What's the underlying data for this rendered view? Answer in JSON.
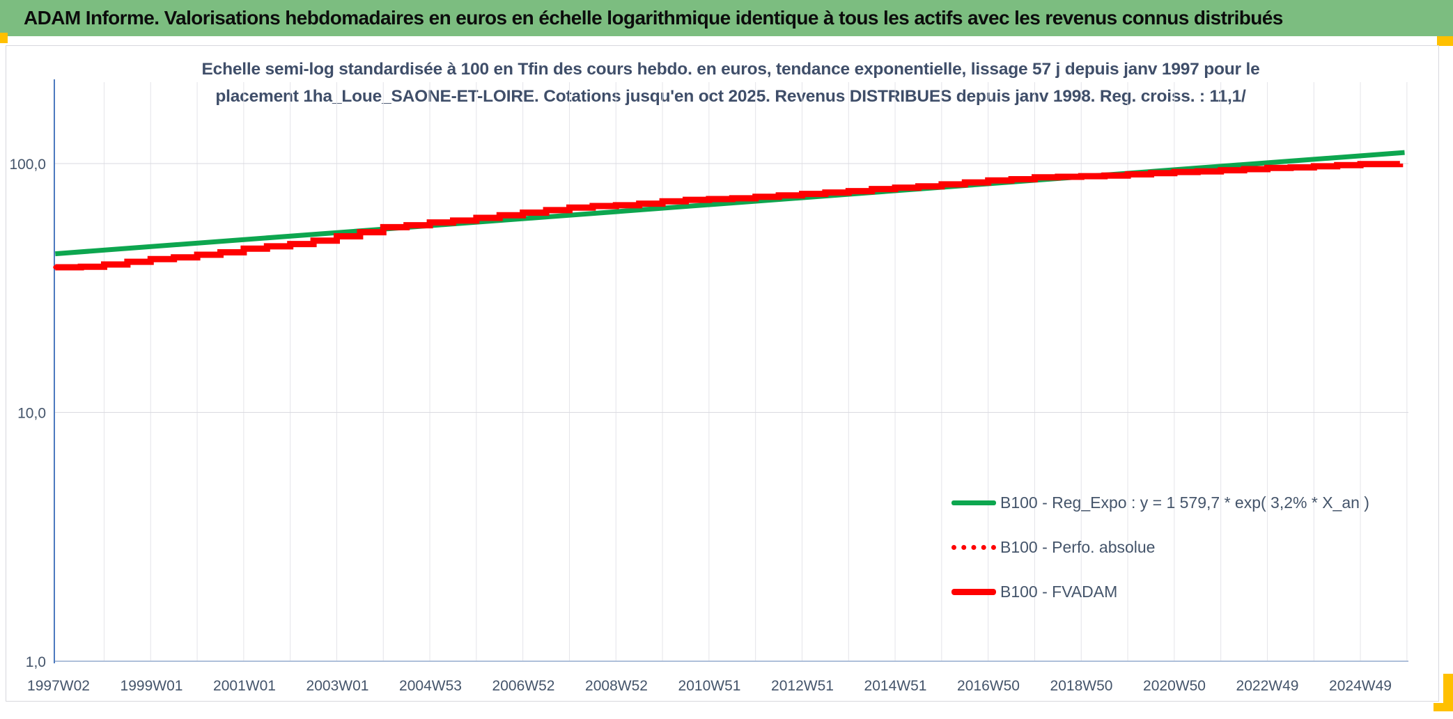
{
  "header": {
    "title": "ADAM Informe. Valorisations hebdomadaires en euros en échelle logarithmique identique à tous les actifs avec les revenus connus distribués",
    "bg_color": "#7CBD80",
    "accent_color": "#FFC000"
  },
  "chart": {
    "title_line1": "Echelle semi-log standardisée à 100 en Tfin des cours hebdo. en euros, tendance exponentielle, lissage 57 j depuis janv 1997 pour le",
    "title_line2": "placement 1ha_Loue_SAONE-ET-LOIRE. Cotations jusqu'en oct 2025. Revenus DISTRIBUES depuis janv 1998. Reg. croiss. : 11,1/",
    "title_color": "#3F4E69"
  },
  "chart_data": {
    "type": "line",
    "title": "Echelle semi-log standardisée à 100 en Tfin des cours hebdo. en euros",
    "xlabel": "",
    "ylabel": "",
    "y_scale": "log",
    "ylim": [
      1,
      209
    ],
    "xlim_years": [
      1996.95,
      2026.1
    ],
    "grid": {
      "vertical": "yearly",
      "horizontal_values": [
        10,
        100
      ]
    },
    "legend_position": "right-center",
    "x_axis": {
      "tick_labels": [
        "1997W02",
        "1999W01",
        "2001W01",
        "2003W01",
        "2004W53",
        "2006W52",
        "2008W52",
        "2010W51",
        "2012W51",
        "2014W51",
        "2016W50",
        "2018W50",
        "2020W50",
        "2022W49",
        "2024W49"
      ]
    },
    "y_axis": {
      "tick_labels": [
        "100,0",
        "10,0",
        "1,0"
      ],
      "tick_values": [
        100,
        10,
        1
      ]
    },
    "series": [
      {
        "name": "B100 - Reg_Expo : y = 1 579,7 * exp( 3,2% *  X_an )",
        "color": "#0DA64F",
        "style": "solid",
        "width": 7,
        "step": false,
        "points": [
          [
            1996.95,
            43.4
          ],
          [
            2025.95,
            110.8
          ]
        ]
      },
      {
        "name": "B100 - Perfo. absolue",
        "color": "#FE0000",
        "style": "dotted",
        "width": 6,
        "step": true,
        "points": [
          [
            1996.95,
            38.3
          ],
          [
            1997.5,
            38.5
          ],
          [
            1998,
            39.3
          ],
          [
            1998.5,
            40.3
          ],
          [
            1999,
            41.3
          ],
          [
            1999.5,
            42.0
          ],
          [
            2000,
            43.0
          ],
          [
            2000.5,
            44.0
          ],
          [
            2001,
            45.5
          ],
          [
            2001.5,
            46.5
          ],
          [
            2002,
            47.5
          ],
          [
            2002.5,
            49.0
          ],
          [
            2003,
            51.0
          ],
          [
            2003.5,
            53.0
          ],
          [
            2004,
            55.5
          ],
          [
            2004.5,
            56.5
          ],
          [
            2005,
            58.0
          ],
          [
            2005.5,
            59.0
          ],
          [
            2006,
            60.5
          ],
          [
            2006.5,
            62.0
          ],
          [
            2007,
            63.5
          ],
          [
            2007.5,
            65.0
          ],
          [
            2008,
            66.5
          ],
          [
            2008.5,
            67.5
          ],
          [
            2009,
            68.0
          ],
          [
            2009.5,
            69.0
          ],
          [
            2010,
            70.5
          ],
          [
            2010.5,
            71.5
          ],
          [
            2011,
            72.0
          ],
          [
            2011.5,
            72.5
          ],
          [
            2012,
            73.5
          ],
          [
            2012.5,
            74.5
          ],
          [
            2013,
            75.5
          ],
          [
            2013.5,
            76.5
          ],
          [
            2014,
            77.5
          ],
          [
            2014.5,
            79.0
          ],
          [
            2015,
            80.0
          ],
          [
            2015.5,
            81.0
          ],
          [
            2016,
            82.5
          ],
          [
            2016.5,
            84.0
          ],
          [
            2017,
            85.5
          ],
          [
            2017.5,
            86.5
          ],
          [
            2018,
            88.0
          ],
          [
            2018.5,
            88.5
          ],
          [
            2019,
            89.0
          ],
          [
            2019.5,
            89.5
          ],
          [
            2020,
            90.5
          ],
          [
            2020.5,
            91.5
          ],
          [
            2021,
            92.5
          ],
          [
            2021.5,
            93.0
          ],
          [
            2022,
            94.0
          ],
          [
            2022.5,
            95.0
          ],
          [
            2023,
            96.0
          ],
          [
            2023.5,
            96.5
          ],
          [
            2024,
            97.5
          ],
          [
            2024.5,
            98.5
          ],
          [
            2025,
            99.5
          ],
          [
            2025.85,
            100.0
          ]
        ]
      },
      {
        "name": "B100 - FVADAM",
        "color": "#FE0000",
        "style": "solid",
        "width": 9,
        "step": true,
        "points": [
          [
            1996.95,
            38.3
          ],
          [
            1997.5,
            38.5
          ],
          [
            1998,
            39.3
          ],
          [
            1998.5,
            40.3
          ],
          [
            1999,
            41.3
          ],
          [
            1999.5,
            42.0
          ],
          [
            2000,
            43.0
          ],
          [
            2000.5,
            44.0
          ],
          [
            2001,
            45.5
          ],
          [
            2001.5,
            46.5
          ],
          [
            2002,
            47.5
          ],
          [
            2002.5,
            49.0
          ],
          [
            2003,
            51.0
          ],
          [
            2003.5,
            53.0
          ],
          [
            2004,
            55.5
          ],
          [
            2004.5,
            56.5
          ],
          [
            2005,
            58.0
          ],
          [
            2005.5,
            59.0
          ],
          [
            2006,
            60.5
          ],
          [
            2006.5,
            62.0
          ],
          [
            2007,
            63.5
          ],
          [
            2007.5,
            65.0
          ],
          [
            2008,
            66.5
          ],
          [
            2008.5,
            67.5
          ],
          [
            2009,
            68.0
          ],
          [
            2009.5,
            69.0
          ],
          [
            2010,
            70.5
          ],
          [
            2010.5,
            71.5
          ],
          [
            2011,
            72.0
          ],
          [
            2011.5,
            72.5
          ],
          [
            2012,
            73.5
          ],
          [
            2012.5,
            74.5
          ],
          [
            2013,
            75.5
          ],
          [
            2013.5,
            76.5
          ],
          [
            2014,
            77.5
          ],
          [
            2014.5,
            79.0
          ],
          [
            2015,
            80.0
          ],
          [
            2015.5,
            81.0
          ],
          [
            2016,
            82.5
          ],
          [
            2016.5,
            84.0
          ],
          [
            2017,
            85.5
          ],
          [
            2017.5,
            86.5
          ],
          [
            2018,
            88.0
          ],
          [
            2018.5,
            88.5
          ],
          [
            2019,
            89.0
          ],
          [
            2019.5,
            89.5
          ],
          [
            2020,
            90.5
          ],
          [
            2020.5,
            91.5
          ],
          [
            2021,
            92.5
          ],
          [
            2021.5,
            93.0
          ],
          [
            2022,
            94.0
          ],
          [
            2022.5,
            95.0
          ],
          [
            2023,
            96.0
          ],
          [
            2023.5,
            96.5
          ],
          [
            2024,
            97.5
          ],
          [
            2024.5,
            98.5
          ],
          [
            2025,
            99.5
          ],
          [
            2025.85,
            100.0
          ]
        ]
      }
    ]
  }
}
